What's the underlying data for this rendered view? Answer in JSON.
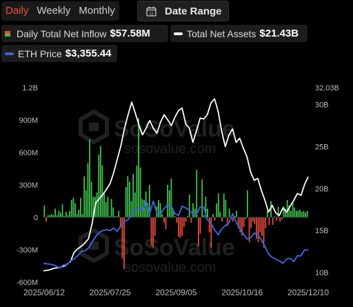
{
  "tabs": [
    {
      "label": "Daily",
      "active": true
    },
    {
      "label": "Weekly",
      "active": false
    },
    {
      "label": "Monthly",
      "active": false
    }
  ],
  "date_range": {
    "label": "Date Range",
    "icon": "calendar-icon",
    "icon_text": "12"
  },
  "legend": {
    "inflow": {
      "name": "Daily Total Net Inflow",
      "value": "$57.58M"
    },
    "assets": {
      "name": "Total Net Assets",
      "value": "$21.43B"
    },
    "price": {
      "name": "ETH Price",
      "value": "$3,355.44"
    }
  },
  "watermark": {
    "brand": "SoSoValue",
    "url": "sosovalue.com"
  },
  "colors": {
    "active_tab": "#e5533d",
    "inflow_positive": "#3cc14b",
    "inflow_negative": "#e34a3a",
    "net_assets_line": "#ffffff",
    "eth_price_line": "#3b63d6",
    "background": "#000000"
  },
  "chart_data": {
    "type": "bar",
    "grid": false,
    "x_tick_labels": [
      "2025/06/12",
      "2025/07/25",
      "2025/09/05",
      "2025/10/16",
      "2025/12/10"
    ],
    "left_axis": {
      "ticks": [
        "1.2B",
        "900M",
        "600M",
        "300M",
        "0",
        "-300M",
        "-600M"
      ],
      "min": -600,
      "max": 1200,
      "unit": "M"
    },
    "right_axis": {
      "ticks": [
        "32.03B",
        "30B",
        "25B",
        "20B",
        "15B",
        "10B"
      ],
      "min": 10,
      "max": 32.03,
      "unit": "B"
    },
    "series": [
      {
        "name": "Daily Total Net Inflow",
        "axis": "left",
        "values": [
          110,
          -40,
          20,
          20,
          30,
          20,
          80,
          20,
          60,
          40,
          120,
          10,
          50,
          20,
          60,
          160,
          180,
          130,
          30,
          70,
          180,
          30,
          380,
          250,
          500,
          720,
          330,
          190,
          190,
          230,
          580,
          660,
          480,
          230,
          140,
          190,
          10,
          170,
          90,
          10,
          10,
          60,
          -100,
          -380,
          -480,
          280,
          380,
          330,
          150,
          400,
          230,
          480,
          920,
          460,
          170,
          160,
          240,
          130,
          300,
          -260,
          -280,
          -170,
          100,
          160,
          130,
          30,
          -50,
          -110,
          300,
          250,
          360,
          70,
          10,
          -50,
          -180,
          -190,
          -170,
          -90,
          -40,
          10,
          210,
          -50,
          130,
          80,
          440,
          -270,
          -150,
          350,
          20,
          190,
          80,
          -140,
          -280,
          30,
          -30,
          130,
          220,
          50,
          -40,
          220,
          160,
          -80,
          80,
          -20,
          -40,
          10,
          60,
          -100,
          -140,
          -170,
          -90,
          -20,
          250,
          -230,
          -100,
          -40,
          -60,
          -200,
          -230,
          -140,
          -170,
          -280,
          -100,
          60,
          -70,
          150,
          -70,
          10,
          -30,
          100,
          -40,
          -20,
          100,
          80,
          160,
          110,
          60,
          130,
          90,
          60,
          60,
          70,
          50,
          60,
          45,
          58
        ]
      },
      {
        "name": "Total Net Assets",
        "axis": "right",
        "points": [
          [
            0,
            10.2
          ],
          [
            6,
            10.3
          ],
          [
            12,
            10.5
          ],
          [
            18,
            10.6
          ],
          [
            24,
            10.8
          ],
          [
            30,
            11.3
          ],
          [
            34,
            12.4
          ],
          [
            38,
            12.8
          ],
          [
            44,
            13.3
          ],
          [
            50,
            14.0
          ],
          [
            54,
            15.8
          ],
          [
            58,
            18.3
          ],
          [
            62,
            18.8
          ],
          [
            66,
            19.3
          ],
          [
            70,
            19.9
          ],
          [
            74,
            20.6
          ],
          [
            78,
            21.9
          ],
          [
            82,
            23.5
          ],
          [
            86,
            25.1
          ],
          [
            90,
            27.2
          ],
          [
            94,
            28.8
          ],
          [
            98,
            30.3
          ],
          [
            102,
            29.0
          ],
          [
            106,
            27.6
          ],
          [
            110,
            26.4
          ],
          [
            114,
            27.2
          ],
          [
            118,
            28.1
          ],
          [
            122,
            27.2
          ],
          [
            126,
            26.6
          ],
          [
            130,
            27.9
          ],
          [
            134,
            28.8
          ],
          [
            138,
            28.2
          ],
          [
            142,
            27.5
          ],
          [
            146,
            28.5
          ],
          [
            150,
            29.3
          ],
          [
            154,
            29.6
          ],
          [
            158,
            27.7
          ],
          [
            162,
            27.2
          ],
          [
            166,
            25.5
          ],
          [
            170,
            26.9
          ],
          [
            174,
            28.4
          ],
          [
            178,
            28.3
          ],
          [
            182,
            28.8
          ],
          [
            186,
            30.2
          ],
          [
            190,
            30.7
          ],
          [
            194,
            29.2
          ],
          [
            198,
            26.8
          ],
          [
            202,
            25.0
          ],
          [
            206,
            26.4
          ],
          [
            210,
            27.1
          ],
          [
            214,
            25.5
          ],
          [
            218,
            26.0
          ],
          [
            222,
            24.8
          ],
          [
            226,
            23.8
          ],
          [
            230,
            22.0
          ],
          [
            234,
            21.0
          ],
          [
            238,
            21.2
          ],
          [
            242,
            19.8
          ],
          [
            246,
            18.6
          ],
          [
            250,
            17.2
          ],
          [
            254,
            18.0
          ],
          [
            258,
            17.1
          ],
          [
            262,
            16.8
          ],
          [
            266,
            17.7
          ],
          [
            270,
            17.2
          ],
          [
            274,
            17.9
          ],
          [
            278,
            18.6
          ],
          [
            282,
            19.4
          ],
          [
            286,
            19.2
          ],
          [
            290,
            20.5
          ],
          [
            294,
            21.4
          ]
        ]
      },
      {
        "name": "ETH Price",
        "axis": "right",
        "points": [
          [
            0,
            11.1
          ],
          [
            6,
            11.0
          ],
          [
            12,
            10.9
          ],
          [
            18,
            10.5
          ],
          [
            22,
            10.9
          ],
          [
            26,
            10.9
          ],
          [
            30,
            11.4
          ],
          [
            34,
            11.6
          ],
          [
            38,
            12.0
          ],
          [
            42,
            12.5
          ],
          [
            46,
            12.6
          ],
          [
            50,
            12.9
          ],
          [
            54,
            13.6
          ],
          [
            58,
            14.3
          ],
          [
            62,
            14.8
          ],
          [
            66,
            15.0
          ],
          [
            70,
            15.1
          ],
          [
            74,
            15.0
          ],
          [
            78,
            15.3
          ],
          [
            82,
            14.9
          ],
          [
            86,
            15.6
          ],
          [
            90,
            16.1
          ],
          [
            94,
            16.3
          ],
          [
            98,
            17.0
          ],
          [
            102,
            17.4
          ],
          [
            106,
            17.7
          ],
          [
            110,
            17.4
          ],
          [
            114,
            18.6
          ],
          [
            118,
            17.0
          ],
          [
            122,
            18.5
          ],
          [
            126,
            17.1
          ],
          [
            130,
            17.0
          ],
          [
            134,
            17.6
          ],
          [
            138,
            18.1
          ],
          [
            142,
            17.9
          ],
          [
            146,
            17.0
          ],
          [
            150,
            16.8
          ],
          [
            154,
            17.9
          ],
          [
            158,
            17.7
          ],
          [
            162,
            17.4
          ],
          [
            166,
            17.0
          ],
          [
            170,
            16.9
          ],
          [
            174,
            17.8
          ],
          [
            178,
            17.8
          ],
          [
            182,
            16.3
          ],
          [
            186,
            15.9
          ],
          [
            190,
            15.1
          ],
          [
            194,
            14.5
          ],
          [
            198,
            15.2
          ],
          [
            202,
            15.6
          ],
          [
            206,
            15.9
          ],
          [
            210,
            17.0
          ],
          [
            214,
            16.0
          ],
          [
            218,
            15.2
          ],
          [
            222,
            14.6
          ],
          [
            226,
            14.0
          ],
          [
            230,
            14.1
          ],
          [
            234,
            14.7
          ],
          [
            238,
            14.5
          ],
          [
            242,
            13.9
          ],
          [
            246,
            13.1
          ],
          [
            250,
            12.2
          ],
          [
            254,
            11.8
          ],
          [
            258,
            11.6
          ],
          [
            262,
            11.4
          ],
          [
            266,
            11.1
          ],
          [
            270,
            11.6
          ],
          [
            274,
            11.7
          ],
          [
            278,
            11.3
          ],
          [
            282,
            12.0
          ],
          [
            286,
            12.0
          ],
          [
            290,
            12.7
          ],
          [
            294,
            12.7
          ]
        ]
      }
    ]
  }
}
